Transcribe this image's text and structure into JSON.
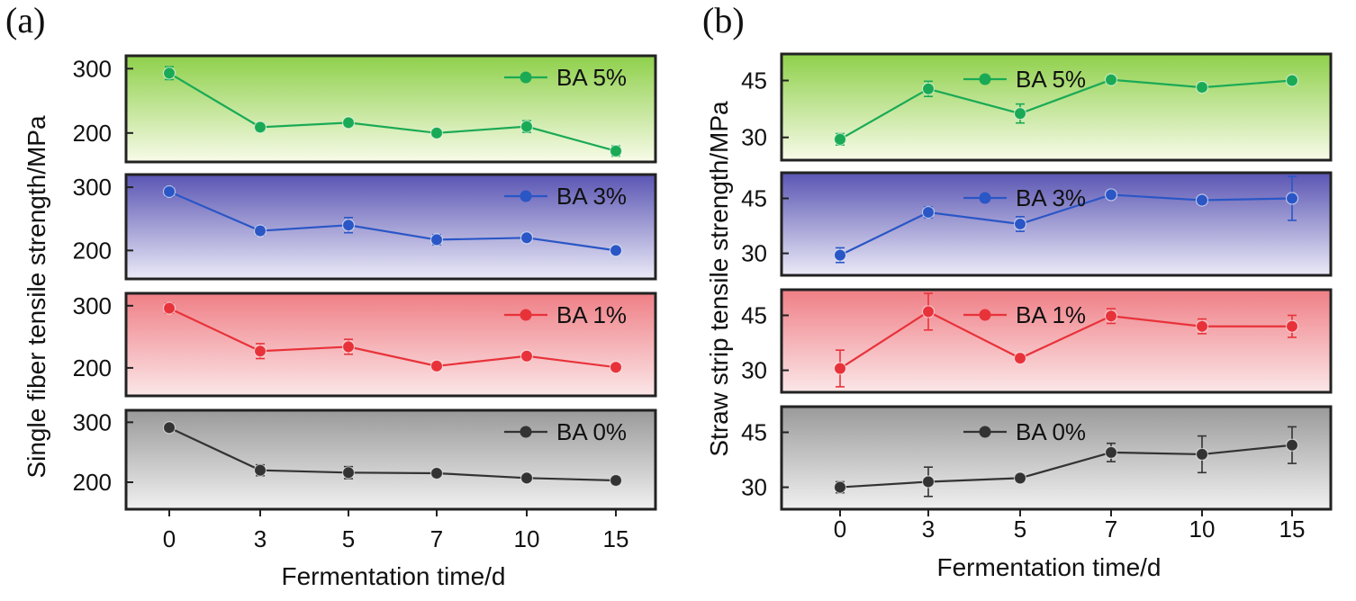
{
  "chart_data": [
    {
      "type": "line",
      "panel_label": "(a)",
      "xlabel": "Fermentation time/d",
      "ylabel": "Single fiber tensile strength/MPa",
      "categories": [
        "0",
        "3",
        "5",
        "7",
        "10",
        "15"
      ],
      "yticks": [
        "200",
        "300"
      ],
      "ylim": [
        155,
        320
      ],
      "series": [
        {
          "name": "BA 5%",
          "color": "#1aaa55",
          "bg_top": "#8ed04a",
          "bg_bottom": "#f8fbe9",
          "values": [
            293,
            209,
            216,
            200,
            210,
            172
          ],
          "errors": [
            10,
            6,
            5,
            5,
            9,
            8
          ]
        },
        {
          "name": "BA 3%",
          "color": "#2a56c6",
          "bg_top": "#5a55b3",
          "bg_bottom": "#ebeaf7",
          "values": [
            293,
            231,
            240,
            217,
            220,
            200
          ],
          "errors": [
            8,
            7,
            12,
            8,
            5,
            5
          ]
        },
        {
          "name": "BA 1%",
          "color": "#e8323a",
          "bg_top": "#ef7f86",
          "bg_bottom": "#fbe7e8",
          "values": [
            296,
            227,
            234,
            203,
            219,
            201
          ],
          "errors": [
            8,
            12,
            12,
            5,
            5,
            4
          ]
        },
        {
          "name": "BA 0%",
          "color": "#333333",
          "bg_top": "#9a9a9a",
          "bg_bottom": "#f0f0f0",
          "values": [
            291,
            220,
            216,
            215,
            207,
            203
          ],
          "errors": [
            6,
            9,
            10,
            5,
            5,
            6
          ]
        }
      ]
    },
    {
      "type": "line",
      "panel_label": "(b)",
      "xlabel": "Fermentation time/d",
      "ylabel": "Straw strip tensile strength/MPa",
      "categories": [
        "0",
        "3",
        "5",
        "7",
        "10",
        "15"
      ],
      "yticks": [
        "30",
        "45"
      ],
      "ylim": [
        24,
        52
      ],
      "series": [
        {
          "name": "BA 5%",
          "color": "#1aaa55",
          "bg_top": "#8ed04a",
          "bg_bottom": "#f8fbe9",
          "values": [
            29.5,
            42.8,
            36.3,
            45.2,
            43.2,
            45.0
          ],
          "errors": [
            1.5,
            2,
            2.5,
            1,
            1,
            1
          ]
        },
        {
          "name": "BA 3%",
          "color": "#2a56c6",
          "bg_top": "#5a55b3",
          "bg_bottom": "#ebeaf7",
          "values": [
            29.5,
            41.2,
            38.0,
            46.0,
            44.5,
            45.0
          ],
          "errors": [
            2,
            1.5,
            2,
            1,
            1,
            6
          ]
        },
        {
          "name": "BA 1%",
          "color": "#e8323a",
          "bg_top": "#ef7f86",
          "bg_bottom": "#fbe7e8",
          "values": [
            30.5,
            46.0,
            33.3,
            44.8,
            42.0,
            42.0
          ],
          "errors": [
            5,
            5,
            1,
            2,
            2,
            3
          ]
        },
        {
          "name": "BA 0%",
          "color": "#333333",
          "bg_top": "#9a9a9a",
          "bg_bottom": "#f0f0f0",
          "values": [
            30.0,
            31.5,
            32.5,
            39.5,
            39.0,
            41.5
          ],
          "errors": [
            1.5,
            4,
            1,
            2.5,
            5,
            5
          ]
        }
      ]
    }
  ]
}
